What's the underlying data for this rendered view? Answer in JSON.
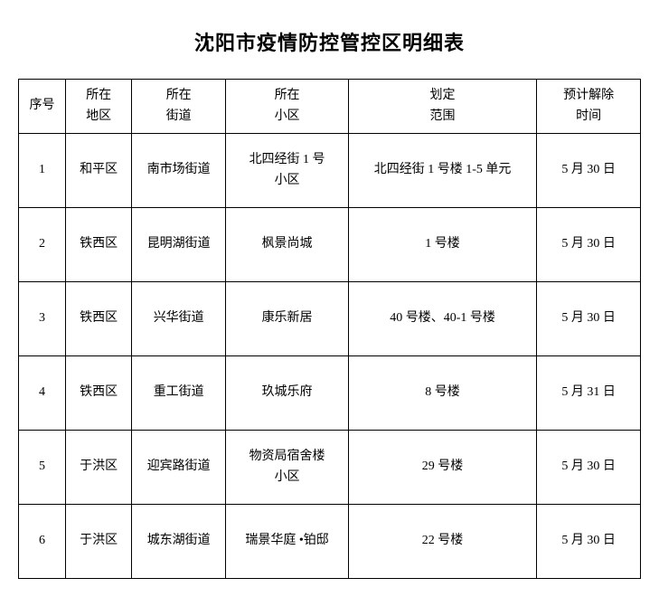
{
  "title": "沈阳市疫情防控管控区明细表",
  "table": {
    "columns": [
      {
        "l1": "序号",
        "l2": ""
      },
      {
        "l1": "所在",
        "l2": "地区"
      },
      {
        "l1": "所在",
        "l2": "街道"
      },
      {
        "l1": "所在",
        "l2": "小区"
      },
      {
        "l1": "划定",
        "l2": "范围"
      },
      {
        "l1": "预计解除",
        "l2": "时间"
      }
    ],
    "rows": [
      {
        "no": "1",
        "district": "和平区",
        "street": "南市场街道",
        "area_l1": "北四经街 1 号",
        "area_l2": "小区",
        "scope": "北四经街 1 号楼 1-5 单元",
        "date": "5 月 30 日"
      },
      {
        "no": "2",
        "district": "铁西区",
        "street": "昆明湖街道",
        "area_l1": "枫景尚城",
        "area_l2": "",
        "scope": "1 号楼",
        "date": "5 月 30 日"
      },
      {
        "no": "3",
        "district": "铁西区",
        "street": "兴华街道",
        "area_l1": "康乐新居",
        "area_l2": "",
        "scope": "40 号楼、40-1 号楼",
        "date": "5 月 30 日"
      },
      {
        "no": "4",
        "district": "铁西区",
        "street": "重工街道",
        "area_l1": "玖城乐府",
        "area_l2": "",
        "scope": "8 号楼",
        "date": "5 月 31 日"
      },
      {
        "no": "5",
        "district": "于洪区",
        "street": "迎宾路街道",
        "area_l1": "物资局宿舍楼",
        "area_l2": "小区",
        "scope": "29 号楼",
        "date": "5 月 30 日"
      },
      {
        "no": "6",
        "district": "于洪区",
        "street": "城东湖街道",
        "area_l1": "瑞景华庭 •铂邸",
        "area_l2": "",
        "scope": "22 号楼",
        "date": "5 月 30 日"
      }
    ]
  }
}
